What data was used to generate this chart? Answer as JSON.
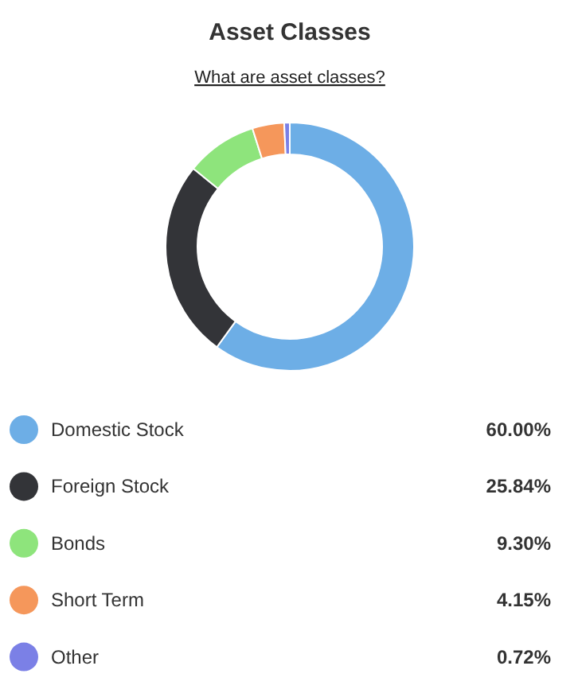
{
  "chart_data": {
    "type": "donut",
    "title": "Asset Classes",
    "subtitle": "What are asset classes?",
    "categories": [
      "Domestic Stock",
      "Foreign Stock",
      "Bonds",
      "Short Term",
      "Other"
    ],
    "values": [
      60.0,
      25.84,
      9.3,
      4.15,
      0.72
    ],
    "colors": [
      "#6daee6",
      "#333438",
      "#8ee47c",
      "#f5975b",
      "#7b80e6"
    ],
    "value_labels": [
      "60.00%",
      "25.84%",
      "9.30%",
      "4.15%",
      "0.72%"
    ],
    "legend": "bottom"
  }
}
